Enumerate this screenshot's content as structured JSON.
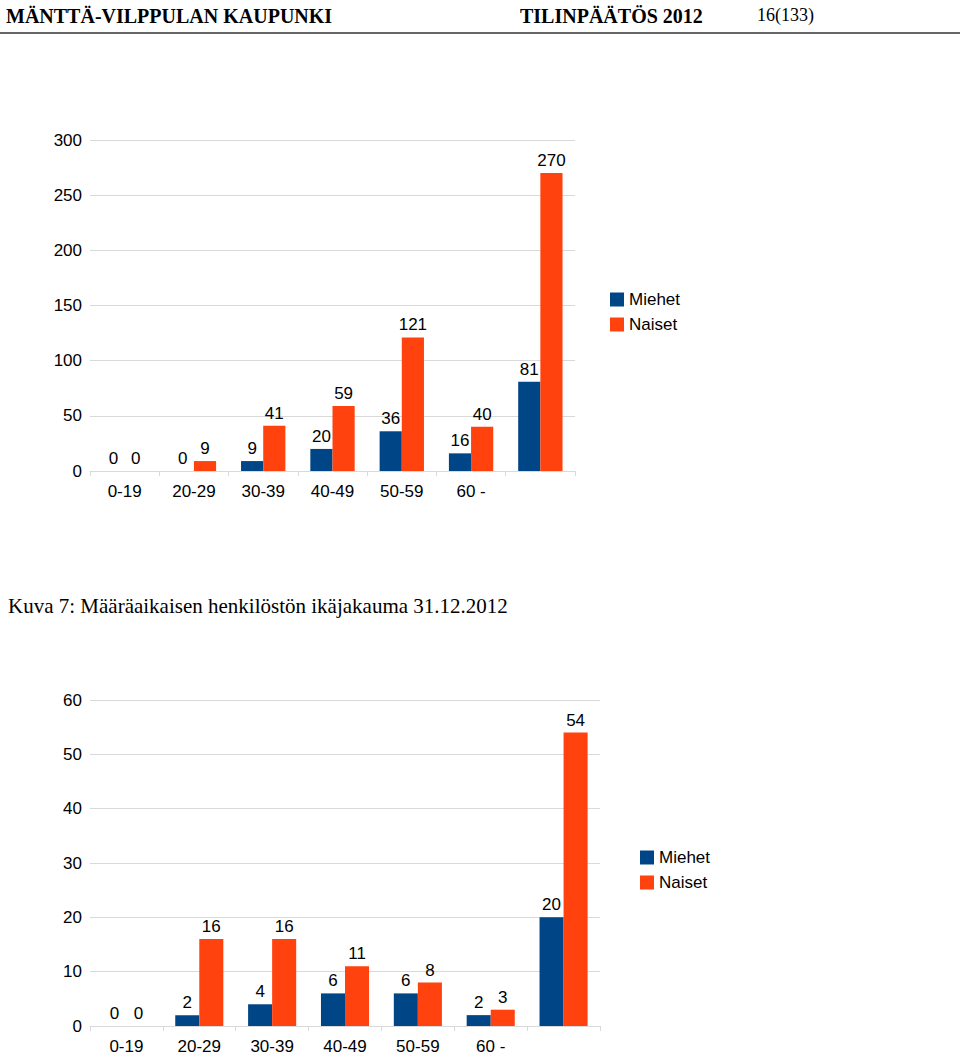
{
  "header": {
    "left": "MÄNTTÄ-VILPPULAN KAUPUNKI",
    "center": "TILINPÄÄTÖS 2012",
    "right": "16(133)"
  },
  "caption": "Kuva 7: Määräaikaisen henkilöstön ikäjakauma 31.12.2012",
  "chart_data": [
    {
      "type": "bar",
      "categories": [
        "0-19",
        "20-29",
        "30-39",
        "40-49",
        "50-59",
        "60 -",
        null
      ],
      "series": [
        {
          "name": "Miehet",
          "color": "#004586",
          "values": [
            0,
            0,
            9,
            20,
            36,
            16,
            81
          ]
        },
        {
          "name": "Naiset",
          "color": "#ff420e",
          "values": [
            0,
            9,
            41,
            59,
            121,
            40,
            270
          ]
        }
      ],
      "ylim": [
        0,
        300
      ],
      "yticks": [
        0,
        50,
        100,
        150,
        200,
        250,
        300
      ],
      "grid": true,
      "legend": "right",
      "data_labels": true
    },
    {
      "type": "bar",
      "categories": [
        "0-19",
        "20-29",
        "30-39",
        "40-49",
        "50-59",
        "60 -",
        null
      ],
      "series": [
        {
          "name": "Miehet",
          "color": "#004586",
          "values": [
            0,
            2,
            4,
            6,
            6,
            2,
            20
          ]
        },
        {
          "name": "Naiset",
          "color": "#ff420e",
          "values": [
            0,
            16,
            16,
            11,
            8,
            3,
            54
          ]
        }
      ],
      "ylim": [
        0,
        60
      ],
      "yticks": [
        0,
        10,
        20,
        30,
        40,
        50,
        60
      ],
      "grid": true,
      "legend": "right",
      "data_labels": true
    }
  ]
}
